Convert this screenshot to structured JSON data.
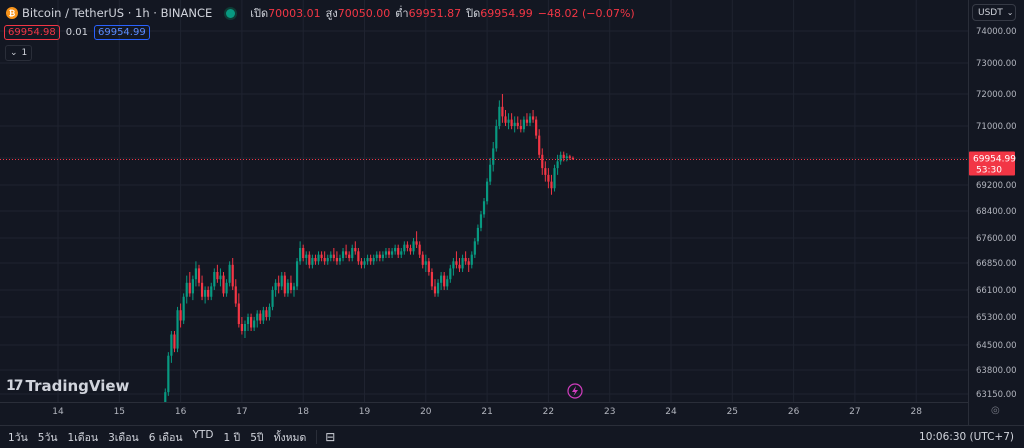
{
  "legend": {
    "coin_glyph": "₿",
    "symbol": "Bitcoin / TetherUS · 1h · BINANCE",
    "open_label": "เปิด",
    "open": "70003.01",
    "high_label": "สูง",
    "high": "70050.00",
    "low_label": "ต่ำ",
    "low": "69951.87",
    "close_label": "ปิด",
    "close": "69954.99",
    "change": "−48.02 (−0.07%)"
  },
  "bid_ask": {
    "sell": "69954.98",
    "spread": "0.01",
    "buy": "69954.99"
  },
  "indicator_toggle": {
    "chevron": "⌄",
    "count": "1"
  },
  "currency_button": "USDT",
  "price_axis": [
    {
      "value": 74000,
      "label": "74000.00"
    },
    {
      "value": 73000,
      "label": "73000.00"
    },
    {
      "value": 72000,
      "label": "72000.00"
    },
    {
      "value": 71000,
      "label": "71000.00"
    },
    {
      "value": 70000,
      "label": "70000.00"
    },
    {
      "value": 69200,
      "label": "69200.00"
    },
    {
      "value": 68400,
      "label": "68400.00"
    },
    {
      "value": 67600,
      "label": "67600.00"
    },
    {
      "value": 66850,
      "label": "66850.00"
    },
    {
      "value": 66100,
      "label": "66100.00"
    },
    {
      "value": 65300,
      "label": "65300.00"
    },
    {
      "value": 64500,
      "label": "64500.00"
    },
    {
      "value": 63800,
      "label": "63800.00"
    },
    {
      "value": 63150,
      "label": "63150.00"
    }
  ],
  "time_axis": [
    "14",
    "15",
    "16",
    "17",
    "18",
    "19",
    "20",
    "21",
    "22",
    "23",
    "24",
    "25",
    "26",
    "27",
    "28"
  ],
  "current_price": {
    "price": 69954.99,
    "label": "69954.99",
    "countdown": "53:30"
  },
  "chart_data": {
    "type": "candlestick",
    "interval": "1h",
    "colors": {
      "up": "#089981",
      "down": "#f23645"
    },
    "x_range": [
      13.5,
      28.9
    ],
    "y_range": [
      62900,
      74300
    ],
    "candles": [
      [
        15.75,
        62800,
        63300,
        62700,
        63200
      ],
      [
        15.8,
        63200,
        64300,
        63100,
        64200
      ],
      [
        15.85,
        64200,
        64900,
        64000,
        64800
      ],
      [
        15.9,
        64800,
        64900,
        64300,
        64400
      ],
      [
        15.95,
        64400,
        65600,
        64300,
        65500
      ],
      [
        16.0,
        65500,
        65700,
        65000,
        65200
      ],
      [
        16.05,
        65200,
        66000,
        65100,
        65900
      ],
      [
        16.1,
        65900,
        66500,
        65700,
        66300
      ],
      [
        16.15,
        66300,
        66600,
        65900,
        66000
      ],
      [
        16.2,
        66000,
        66500,
        65800,
        66400
      ],
      [
        16.25,
        66400,
        66900,
        66200,
        66700
      ],
      [
        16.3,
        66700,
        66800,
        66200,
        66300
      ],
      [
        16.35,
        66300,
        66500,
        65800,
        65900
      ],
      [
        16.4,
        65900,
        66200,
        65700,
        66100
      ],
      [
        16.45,
        66100,
        66200,
        65800,
        65900
      ],
      [
        16.5,
        65900,
        66300,
        65800,
        66200
      ],
      [
        16.55,
        66200,
        66700,
        66100,
        66600
      ],
      [
        16.6,
        66600,
        66800,
        66300,
        66400
      ],
      [
        16.65,
        66400,
        66700,
        66200,
        66500
      ],
      [
        16.7,
        66500,
        66600,
        65900,
        66000
      ],
      [
        16.75,
        66000,
        66400,
        65900,
        66300
      ],
      [
        16.8,
        66300,
        66900,
        66200,
        66800
      ],
      [
        16.85,
        66800,
        67000,
        66100,
        66200
      ],
      [
        16.9,
        66200,
        66400,
        65600,
        65700
      ],
      [
        16.95,
        65700,
        66000,
        65000,
        65100
      ],
      [
        17.0,
        65100,
        65300,
        64800,
        64900
      ],
      [
        17.05,
        64900,
        65200,
        64700,
        65100
      ],
      [
        17.1,
        65100,
        65400,
        64900,
        65300
      ],
      [
        17.15,
        65300,
        65400,
        64900,
        65000
      ],
      [
        17.2,
        65000,
        65300,
        64900,
        65200
      ],
      [
        17.25,
        65200,
        65500,
        65000,
        65400
      ],
      [
        17.3,
        65400,
        65500,
        65100,
        65200
      ],
      [
        17.35,
        65200,
        65600,
        65100,
        65500
      ],
      [
        17.4,
        65500,
        65600,
        65200,
        65300
      ],
      [
        17.45,
        65300,
        65700,
        65200,
        65600
      ],
      [
        17.5,
        65600,
        66200,
        65500,
        66100
      ],
      [
        17.55,
        66100,
        66400,
        65900,
        66300
      ],
      [
        17.6,
        66300,
        66500,
        66000,
        66200
      ],
      [
        17.65,
        66200,
        66600,
        66100,
        66500
      ],
      [
        17.7,
        66500,
        66600,
        65900,
        66000
      ],
      [
        17.75,
        66000,
        66400,
        65900,
        66300
      ],
      [
        17.8,
        66300,
        66500,
        66000,
        66100
      ],
      [
        17.85,
        66100,
        66300,
        65900,
        66200
      ],
      [
        17.9,
        66200,
        67000,
        66100,
        66900
      ],
      [
        17.95,
        66900,
        67500,
        66800,
        67300
      ],
      [
        18.0,
        67300,
        67400,
        66900,
        67000
      ],
      [
        18.05,
        67000,
        67200,
        66800,
        67100
      ],
      [
        18.1,
        67100,
        67200,
        66700,
        66800
      ],
      [
        18.15,
        66800,
        67100,
        66700,
        67000
      ],
      [
        18.2,
        67000,
        67100,
        66800,
        66900
      ],
      [
        18.25,
        66900,
        67200,
        66800,
        67100
      ],
      [
        18.3,
        67100,
        67200,
        66900,
        67000
      ],
      [
        18.35,
        67000,
        67200,
        66800,
        66900
      ],
      [
        18.4,
        66900,
        67100,
        66800,
        67000
      ],
      [
        18.45,
        67000,
        67200,
        66900,
        67100
      ],
      [
        18.5,
        67100,
        67300,
        66900,
        67000
      ],
      [
        18.55,
        67000,
        67200,
        66800,
        66900
      ],
      [
        18.6,
        66900,
        67100,
        66800,
        67000
      ],
      [
        18.65,
        67000,
        67300,
        66900,
        67200
      ],
      [
        18.7,
        67200,
        67400,
        67000,
        67100
      ],
      [
        18.75,
        67100,
        67200,
        66900,
        67000
      ],
      [
        18.8,
        67000,
        67400,
        66900,
        67300
      ],
      [
        18.85,
        67300,
        67500,
        67100,
        67200
      ],
      [
        18.9,
        67200,
        67300,
        66800,
        66900
      ],
      [
        18.95,
        66900,
        67000,
        66700,
        66800
      ],
      [
        19.0,
        66800,
        67000,
        66700,
        66900
      ],
      [
        19.05,
        66900,
        67100,
        66800,
        67000
      ],
      [
        19.1,
        67000,
        67100,
        66800,
        66900
      ],
      [
        19.15,
        66900,
        67100,
        66800,
        67000
      ],
      [
        19.2,
        67000,
        67200,
        66900,
        67100
      ],
      [
        19.25,
        67100,
        67200,
        66900,
        67000
      ],
      [
        19.3,
        67000,
        67200,
        66900,
        67100
      ],
      [
        19.35,
        67100,
        67300,
        67000,
        67200
      ],
      [
        19.4,
        67200,
        67300,
        67000,
        67100
      ],
      [
        19.45,
        67100,
        67300,
        67000,
        67200
      ],
      [
        19.5,
        67200,
        67400,
        67100,
        67300
      ],
      [
        19.55,
        67300,
        67400,
        67000,
        67100
      ],
      [
        19.6,
        67100,
        67300,
        67000,
        67200
      ],
      [
        19.65,
        67200,
        67500,
        67100,
        67400
      ],
      [
        19.7,
        67400,
        67500,
        67200,
        67300
      ],
      [
        19.75,
        67300,
        67400,
        67100,
        67200
      ],
      [
        19.8,
        67200,
        67600,
        67100,
        67500
      ],
      [
        19.85,
        67500,
        67800,
        67300,
        67400
      ],
      [
        19.9,
        67400,
        67500,
        67000,
        67100
      ],
      [
        19.95,
        67100,
        67200,
        66700,
        66800
      ],
      [
        20.0,
        66800,
        67100,
        66600,
        66900
      ],
      [
        20.05,
        66900,
        67000,
        66500,
        66600
      ],
      [
        20.1,
        66600,
        66700,
        66100,
        66200
      ],
      [
        20.15,
        66200,
        66400,
        65900,
        66000
      ],
      [
        20.2,
        66000,
        66400,
        65900,
        66300
      ],
      [
        20.25,
        66300,
        66600,
        66100,
        66500
      ],
      [
        20.3,
        66500,
        66600,
        66100,
        66200
      ],
      [
        20.35,
        66200,
        66500,
        66100,
        66400
      ],
      [
        20.4,
        66400,
        66800,
        66300,
        66700
      ],
      [
        20.45,
        66700,
        67000,
        66500,
        66900
      ],
      [
        20.5,
        66900,
        67200,
        66700,
        66800
      ],
      [
        20.55,
        66800,
        67000,
        66600,
        66700
      ],
      [
        20.6,
        66700,
        67100,
        66600,
        67000
      ],
      [
        20.65,
        67000,
        67200,
        66800,
        66900
      ],
      [
        20.7,
        66900,
        67000,
        66600,
        66800
      ],
      [
        20.75,
        66800,
        67200,
        66700,
        67100
      ],
      [
        20.8,
        67100,
        67600,
        67000,
        67500
      ],
      [
        20.85,
        67500,
        68000,
        67400,
        67900
      ],
      [
        20.9,
        67900,
        68400,
        67800,
        68300
      ],
      [
        20.95,
        68300,
        68800,
        68200,
        68700
      ],
      [
        21.0,
        68700,
        69400,
        68600,
        69300
      ],
      [
        21.05,
        69300,
        70000,
        69200,
        69800
      ],
      [
        21.1,
        69800,
        70500,
        69600,
        70300
      ],
      [
        21.15,
        70300,
        71200,
        70200,
        71000
      ],
      [
        21.2,
        71000,
        71800,
        70900,
        71600
      ],
      [
        21.25,
        71600,
        72000,
        71100,
        71300
      ],
      [
        21.3,
        71300,
        71500,
        71000,
        71100
      ],
      [
        21.35,
        71100,
        71400,
        70900,
        71200
      ],
      [
        21.4,
        71200,
        71400,
        70900,
        71000
      ],
      [
        21.45,
        71000,
        71300,
        70800,
        71100
      ],
      [
        21.5,
        71100,
        71300,
        70900,
        71000
      ],
      [
        21.55,
        71000,
        71200,
        70800,
        70900
      ],
      [
        21.6,
        70900,
        71300,
        70800,
        71200
      ],
      [
        21.65,
        71200,
        71400,
        71000,
        71100
      ],
      [
        21.7,
        71100,
        71400,
        71000,
        71300
      ],
      [
        21.75,
        71300,
        71500,
        71100,
        71200
      ],
      [
        21.8,
        71200,
        71300,
        70600,
        70700
      ],
      [
        21.85,
        70700,
        70900,
        70000,
        70100
      ],
      [
        21.9,
        70100,
        70300,
        69500,
        69700
      ],
      [
        21.95,
        69700,
        69900,
        69300,
        69500
      ],
      [
        22.0,
        69500,
        69700,
        69100,
        69300
      ],
      [
        22.05,
        69300,
        69500,
        68900,
        69100
      ],
      [
        22.1,
        69100,
        69800,
        69000,
        69700
      ],
      [
        22.15,
        69700,
        70100,
        69500,
        69900
      ],
      [
        22.2,
        69900,
        70200,
        69800,
        70100
      ],
      [
        22.25,
        70100,
        70200,
        69900,
        70000
      ],
      [
        22.3,
        70000,
        70150,
        69900,
        70050
      ],
      [
        22.35,
        70050,
        70100,
        69940,
        70003
      ],
      [
        22.4,
        70003.01,
        70050,
        69951.87,
        69954.99
      ]
    ]
  },
  "branding": {
    "logo_mark": "17",
    "logo_text": "TradingView"
  },
  "event_icon": "lightning-icon",
  "bottom_bar": {
    "timeframes": [
      "1วัน",
      "5วัน",
      "1เดือน",
      "3เดือน",
      "6 เดือน",
      "YTD",
      "1 ปี",
      "5ปี",
      "ทั้งหมด"
    ],
    "calendar_icon": "calendar-range-icon",
    "clock": "10:06:30 (UTC+7)"
  },
  "settings_icon": "gear-icon"
}
